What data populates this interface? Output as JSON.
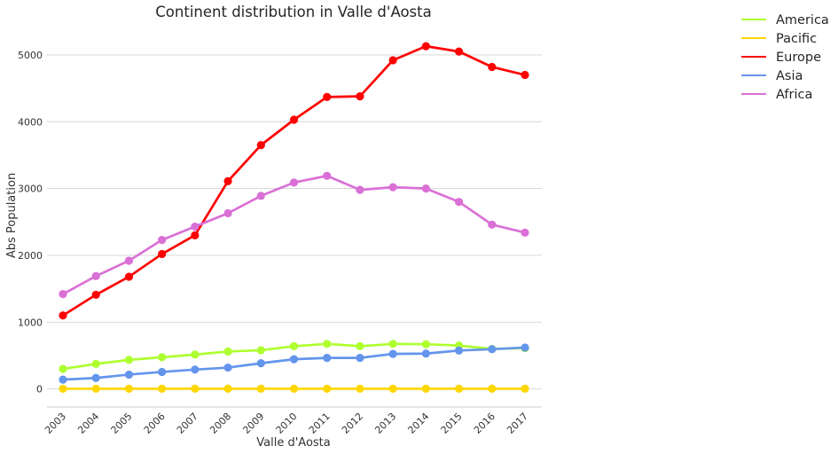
{
  "chart_data": {
    "type": "line",
    "title": "Continent distribution in Valle d'Aosta",
    "xlabel": "Valle d'Aosta",
    "ylabel": "Abs Population",
    "categories": [
      "2003",
      "2004",
      "2005",
      "2006",
      "2007",
      "2008",
      "2009",
      "2010",
      "2011",
      "2012",
      "2013",
      "2014",
      "2015",
      "2016",
      "2017"
    ],
    "ylim": [
      -270,
      5450
    ],
    "yticks": [
      0,
      1000,
      2000,
      3000,
      4000,
      5000
    ],
    "grid": "horizontal",
    "legend_position": "outside-top-right",
    "series": [
      {
        "name": "America",
        "color": "#adff2f",
        "values": [
          300,
          375,
          435,
          475,
          515,
          560,
          580,
          640,
          675,
          640,
          675,
          670,
          650,
          600,
          610
        ]
      },
      {
        "name": "Pacific",
        "color": "#ffd700",
        "values": [
          3,
          3,
          4,
          4,
          4,
          4,
          4,
          4,
          4,
          4,
          4,
          4,
          4,
          4,
          4
        ]
      },
      {
        "name": "Europe",
        "color": "#ff0000",
        "values": [
          1100,
          1410,
          1680,
          2020,
          2300,
          3110,
          3650,
          4030,
          4370,
          4380,
          4920,
          5130,
          5050,
          4820,
          4700
        ]
      },
      {
        "name": "Asia",
        "color": "#6495ed",
        "values": [
          140,
          165,
          215,
          255,
          290,
          320,
          385,
          445,
          465,
          465,
          525,
          530,
          575,
          595,
          620
        ]
      },
      {
        "name": "Africa",
        "color": "#da70d6",
        "values": [
          1420,
          1690,
          1920,
          2230,
          2430,
          2630,
          2890,
          3090,
          3190,
          2980,
          3020,
          3000,
          2800,
          2460,
          2340
        ]
      }
    ]
  }
}
